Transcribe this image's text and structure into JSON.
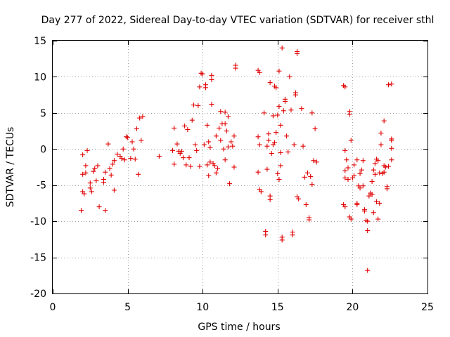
{
  "chart_data": {
    "type": "scatter",
    "title": "Day 277 of 2022, Sidereal Day-to-day VTEC variation (SDTVAR) for receiver sthl",
    "xlabel": "GPS time / hours",
    "ylabel": "SDTVAR / TECUs",
    "xlim": [
      0,
      25
    ],
    "ylim": [
      -20,
      15
    ],
    "xticks": [
      0,
      5,
      10,
      15,
      20,
      25
    ],
    "yticks": [
      -20,
      -15,
      -10,
      -5,
      0,
      5,
      10,
      15
    ],
    "grid": true,
    "marker": "+",
    "color": "#e00000",
    "points": [
      [
        1.9,
        -8.5
      ],
      [
        2.0,
        -5.9
      ],
      [
        2.0,
        -3.5
      ],
      [
        2.1,
        -6.2
      ],
      [
        2.2,
        -2.3
      ],
      [
        2.2,
        -3.3
      ],
      [
        2.3,
        -0.2
      ],
      [
        2.0,
        -0.8
      ],
      [
        2.5,
        -4.7
      ],
      [
        2.5,
        -5.4
      ],
      [
        2.6,
        -5.9
      ],
      [
        2.7,
        -3.1
      ],
      [
        2.8,
        -2.7
      ],
      [
        2.9,
        -4.4
      ],
      [
        3.0,
        -2.3
      ],
      [
        3.1,
        -8.0
      ],
      [
        3.4,
        -4.2
      ],
      [
        3.4,
        -4.6
      ],
      [
        3.5,
        -3.2
      ],
      [
        3.5,
        -8.5
      ],
      [
        3.7,
        0.7
      ],
      [
        3.8,
        -2.7
      ],
      [
        3.9,
        -3.6
      ],
      [
        4.0,
        -2.1
      ],
      [
        4.1,
        -1.6
      ],
      [
        4.1,
        -5.7
      ],
      [
        4.3,
        -0.7
      ],
      [
        4.5,
        -1.0
      ],
      [
        4.6,
        -1.3
      ],
      [
        4.7,
        0.0
      ],
      [
        4.8,
        -1.5
      ],
      [
        4.9,
        1.7
      ],
      [
        5.0,
        1.6
      ],
      [
        5.2,
        -1.3
      ],
      [
        5.3,
        1.0
      ],
      [
        5.4,
        0.0
      ],
      [
        5.5,
        -1.4
      ],
      [
        5.6,
        2.8
      ],
      [
        5.7,
        -3.5
      ],
      [
        5.9,
        1.2
      ],
      [
        5.8,
        4.3
      ],
      [
        6.0,
        4.5
      ],
      [
        7.1,
        -1.0
      ],
      [
        8.0,
        -0.2
      ],
      [
        8.1,
        2.9
      ],
      [
        8.1,
        -2.1
      ],
      [
        8.3,
        0.7
      ],
      [
        8.4,
        -0.3
      ],
      [
        8.5,
        -0.6
      ],
      [
        8.6,
        -0.3
      ],
      [
        8.7,
        -1.2
      ],
      [
        8.8,
        3.2
      ],
      [
        8.9,
        -2.2
      ],
      [
        9.0,
        2.7
      ],
      [
        9.1,
        -1.2
      ],
      [
        9.2,
        -2.4
      ],
      [
        9.3,
        4.0
      ],
      [
        9.4,
        6.1
      ],
      [
        9.5,
        0.6
      ],
      [
        9.6,
        -0.2
      ],
      [
        9.7,
        6.0
      ],
      [
        9.8,
        -2.4
      ],
      [
        9.8,
        8.6
      ],
      [
        9.9,
        10.5
      ],
      [
        10.0,
        10.4
      ],
      [
        10.1,
        0.6
      ],
      [
        10.2,
        8.9
      ],
      [
        10.2,
        8.5
      ],
      [
        10.3,
        -2.2
      ],
      [
        10.3,
        3.3
      ],
      [
        10.4,
        1.0
      ],
      [
        10.4,
        -3.7
      ],
      [
        10.5,
        0.2
      ],
      [
        10.5,
        -1.8
      ],
      [
        10.6,
        9.6
      ],
      [
        10.6,
        10.2
      ],
      [
        10.6,
        6.2
      ],
      [
        10.7,
        -2.0
      ],
      [
        10.8,
        -2.3
      ],
      [
        10.9,
        1.8
      ],
      [
        10.9,
        -3.3
      ],
      [
        11.0,
        -2.7
      ],
      [
        11.1,
        2.9
      ],
      [
        11.2,
        5.2
      ],
      [
        11.2,
        1.2
      ],
      [
        11.3,
        3.5
      ],
      [
        11.4,
        0.0
      ],
      [
        11.5,
        -1.5
      ],
      [
        11.5,
        5.1
      ],
      [
        11.5,
        3.5
      ],
      [
        11.6,
        2.5
      ],
      [
        11.7,
        0.3
      ],
      [
        11.7,
        4.5
      ],
      [
        11.8,
        -4.8
      ],
      [
        11.9,
        1.0
      ],
      [
        12.0,
        0.4
      ],
      [
        12.1,
        1.8
      ],
      [
        12.1,
        -2.5
      ],
      [
        12.2,
        11.6
      ],
      [
        12.2,
        11.2
      ],
      [
        13.7,
        10.9
      ],
      [
        13.8,
        10.6
      ],
      [
        13.7,
        1.7
      ],
      [
        13.8,
        0.6
      ],
      [
        13.7,
        -3.2
      ],
      [
        13.8,
        -5.6
      ],
      [
        13.9,
        -5.9
      ],
      [
        14.1,
        5.0
      ],
      [
        14.2,
        -11.4
      ],
      [
        14.2,
        -11.9
      ],
      [
        14.3,
        -2.8
      ],
      [
        14.3,
        0.4
      ],
      [
        14.4,
        2.1
      ],
      [
        14.4,
        1.2
      ],
      [
        14.5,
        9.2
      ],
      [
        14.5,
        -6.5
      ],
      [
        14.5,
        -7.0
      ],
      [
        14.6,
        -0.6
      ],
      [
        14.7,
        0.6
      ],
      [
        14.7,
        4.6
      ],
      [
        14.8,
        0.9
      ],
      [
        14.8,
        8.7
      ],
      [
        14.9,
        2.3
      ],
      [
        14.9,
        8.5
      ],
      [
        15.0,
        4.7
      ],
      [
        15.0,
        -3.4
      ],
      [
        15.1,
        -4.2
      ],
      [
        15.1,
        5.9
      ],
      [
        15.1,
        10.8
      ],
      [
        15.2,
        -0.5
      ],
      [
        15.2,
        -2.3
      ],
      [
        15.2,
        3.3
      ],
      [
        15.3,
        -12.2
      ],
      [
        15.3,
        -12.6
      ],
      [
        15.3,
        14.0
      ],
      [
        15.4,
        5.3
      ],
      [
        15.5,
        6.6
      ],
      [
        15.5,
        6.9
      ],
      [
        15.6,
        1.8
      ],
      [
        15.7,
        -0.4
      ],
      [
        15.8,
        10.0
      ],
      [
        15.9,
        5.4
      ],
      [
        16.0,
        -11.5
      ],
      [
        16.0,
        -11.9
      ],
      [
        16.1,
        0.6
      ],
      [
        16.2,
        7.8
      ],
      [
        16.2,
        7.5
      ],
      [
        16.3,
        13.5
      ],
      [
        16.3,
        13.2
      ],
      [
        16.3,
        -6.6
      ],
      [
        16.4,
        -6.9
      ],
      [
        16.6,
        5.6
      ],
      [
        16.7,
        0.4
      ],
      [
        16.8,
        -3.9
      ],
      [
        16.9,
        -7.7
      ],
      [
        17.0,
        -3.3
      ],
      [
        17.1,
        -9.5
      ],
      [
        17.1,
        -9.8
      ],
      [
        17.2,
        -3.8
      ],
      [
        17.3,
        -4.9
      ],
      [
        17.3,
        5.0
      ],
      [
        17.4,
        -1.6
      ],
      [
        17.5,
        2.8
      ],
      [
        17.6,
        -1.8
      ],
      [
        19.4,
        8.8
      ],
      [
        19.5,
        8.6
      ],
      [
        19.4,
        -7.7
      ],
      [
        19.5,
        -8.0
      ],
      [
        19.5,
        -3.0
      ],
      [
        19.5,
        -4.0
      ],
      [
        19.5,
        -0.2
      ],
      [
        19.6,
        -1.5
      ],
      [
        19.7,
        -4.2
      ],
      [
        19.7,
        -2.6
      ],
      [
        19.8,
        5.2
      ],
      [
        19.8,
        4.8
      ],
      [
        19.8,
        -9.4
      ],
      [
        19.9,
        -9.7
      ],
      [
        19.9,
        1.2
      ],
      [
        20.0,
        -4.0
      ],
      [
        20.1,
        -2.2
      ],
      [
        20.1,
        -3.7
      ],
      [
        20.3,
        -7.5
      ],
      [
        20.3,
        -7.7
      ],
      [
        20.3,
        -1.5
      ],
      [
        20.4,
        -5.1
      ],
      [
        20.5,
        -3.4
      ],
      [
        20.5,
        -5.4
      ],
      [
        20.6,
        -2.9
      ],
      [
        20.7,
        -1.6
      ],
      [
        20.7,
        -5.1
      ],
      [
        20.8,
        -8.4
      ],
      [
        20.8,
        -8.6
      ],
      [
        20.9,
        -9.9
      ],
      [
        21.0,
        -11.3
      ],
      [
        21.0,
        -16.8
      ],
      [
        21.0,
        -10.0
      ],
      [
        21.1,
        -6.5
      ],
      [
        21.2,
        -6.1
      ],
      [
        21.3,
        -6.3
      ],
      [
        21.3,
        -4.5
      ],
      [
        21.4,
        -8.8
      ],
      [
        21.4,
        -2.9
      ],
      [
        21.5,
        -2.0
      ],
      [
        21.5,
        -3.5
      ],
      [
        21.6,
        -1.4
      ],
      [
        21.6,
        -7.3
      ],
      [
        21.7,
        -9.7
      ],
      [
        21.7,
        -1.6
      ],
      [
        21.8,
        -3.3
      ],
      [
        21.8,
        -7.5
      ],
      [
        21.9,
        2.2
      ],
      [
        21.9,
        0.6
      ],
      [
        22.0,
        -3.4
      ],
      [
        22.1,
        -2.3
      ],
      [
        22.1,
        3.9
      ],
      [
        22.1,
        -3.2
      ],
      [
        22.2,
        -2.5
      ],
      [
        22.3,
        -5.2
      ],
      [
        22.3,
        -5.5
      ],
      [
        22.4,
        8.9
      ],
      [
        22.4,
        -2.4
      ],
      [
        22.6,
        9.0
      ],
      [
        22.6,
        1.4
      ],
      [
        22.6,
        1.2
      ],
      [
        22.6,
        0.1
      ],
      [
        22.6,
        -1.5
      ]
    ]
  }
}
